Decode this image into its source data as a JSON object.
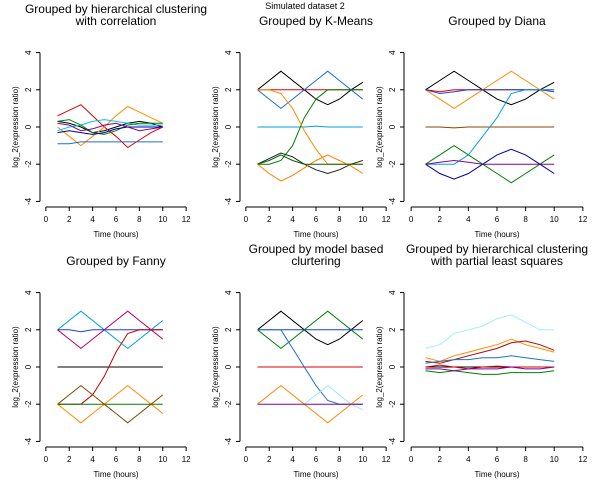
{
  "title": "Simulated dataset 2",
  "chart_data": [
    {
      "type": "line",
      "title": [
        "Grouped by hierarchical clustering",
        "with correlation"
      ],
      "xlabel": "Time (hours)",
      "ylabel": "log_2(expression ratio)",
      "x": [
        1,
        2,
        3,
        4,
        5,
        6,
        7,
        8,
        9,
        10
      ],
      "xlim": [
        -0.5,
        12.5
      ],
      "xticks": [
        0,
        2,
        4,
        6,
        8,
        10,
        12
      ],
      "ylim": [
        -4.3,
        4.3
      ],
      "yticks": [
        -4,
        -2,
        0,
        2,
        4
      ],
      "series": [
        {
          "color": "#000000",
          "values": [
            0.3,
            0.2,
            0,
            -0.3,
            -0.2,
            0,
            0.2,
            0.3,
            0.2,
            0
          ]
        },
        {
          "color": "#e00000",
          "values": [
            0.6,
            0.9,
            1.2,
            0.6,
            0,
            -0.5,
            -1.1,
            -0.7,
            -0.3,
            0
          ]
        },
        {
          "color": "#ff8c00",
          "values": [
            0,
            -0.5,
            -1,
            -0.5,
            0,
            0.6,
            1.1,
            0.8,
            0.5,
            0.2
          ]
        },
        {
          "color": "#1e6fd0",
          "values": [
            -0.9,
            -0.9,
            -0.8,
            -0.8,
            -0.8,
            -0.8,
            -0.8,
            -0.8,
            -0.8,
            -0.8
          ]
        },
        {
          "color": "#00c8e0",
          "values": [
            -0.2,
            0,
            0.1,
            0.3,
            0.4,
            0.3,
            0.2,
            0.1,
            0.1,
            0.1
          ]
        },
        {
          "color": "#008000",
          "values": [
            0.3,
            0.4,
            0.1,
            -0.3,
            -0.4,
            -0.2,
            0.1,
            0.2,
            0.2,
            0.2
          ]
        },
        {
          "color": "#0000a0",
          "values": [
            -0.3,
            -0.2,
            -0.3,
            -0.4,
            -0.3,
            -0.1,
            0,
            0,
            0,
            0
          ]
        },
        {
          "color": "#8000a0",
          "values": [
            0.2,
            0.1,
            -0.2,
            -0.1,
            0.1,
            0.2,
            0,
            -0.2,
            -0.1,
            0
          ]
        }
      ]
    },
    {
      "type": "line",
      "title": [
        "Grouped by K-Means"
      ],
      "xlabel": "Time (hours)",
      "ylabel": "log_2(expression ratio)",
      "x": [
        1,
        2,
        3,
        4,
        5,
        6,
        7,
        8,
        9,
        10
      ],
      "xlim": [
        -0.5,
        12.5
      ],
      "xticks": [
        0,
        2,
        4,
        6,
        8,
        10,
        12
      ],
      "ylim": [
        -4.3,
        4.3
      ],
      "yticks": [
        -4,
        -2,
        0,
        2,
        4
      ],
      "series": [
        {
          "color": "#e00000",
          "values": [
            2,
            2,
            2,
            2,
            2,
            2,
            2,
            2,
            2,
            2
          ]
        },
        {
          "color": "#000000",
          "values": [
            2,
            2.5,
            3,
            2.5,
            2,
            1.5,
            1.2,
            1.5,
            2,
            2.4
          ]
        },
        {
          "color": "#1e6fd0",
          "values": [
            2,
            1.5,
            1,
            1.5,
            2,
            2.5,
            3,
            2.5,
            2,
            1.5
          ]
        },
        {
          "color": "#00a0e0",
          "values": [
            0,
            0,
            0,
            0,
            0,
            0.05,
            0,
            0,
            0,
            0
          ]
        },
        {
          "color": "#008000",
          "values": [
            -2,
            -2,
            -1.8,
            -1,
            0.5,
            1.5,
            2,
            2,
            2,
            2
          ]
        },
        {
          "color": "#ff8c00",
          "values": [
            2,
            2,
            1.8,
            1,
            -0.2,
            -1.2,
            -2,
            -2,
            -2,
            -2
          ]
        },
        {
          "color": "#202020",
          "values": [
            -2,
            -1.7,
            -1.4,
            -1.6,
            -2,
            -2.3,
            -2.5,
            -2.3,
            -2,
            -1.8
          ]
        },
        {
          "color": "#ff7f00",
          "values": [
            -2,
            -2.5,
            -2.9,
            -2.6,
            -2.2,
            -1.8,
            -1.5,
            -1.8,
            -2.1,
            -2.5
          ]
        },
        {
          "color": "#006400",
          "values": [
            -2,
            -1.8,
            -1.5,
            -1.8,
            -2,
            -2,
            -2,
            -2,
            -2,
            -2
          ]
        }
      ]
    },
    {
      "type": "line",
      "title": [
        "Grouped by Diana"
      ],
      "xlabel": "Time (hours)",
      "ylabel": "log_2(expression ratio)",
      "x": [
        1,
        2,
        3,
        4,
        5,
        6,
        7,
        8,
        9,
        10
      ],
      "xlim": [
        -0.5,
        12.5
      ],
      "xticks": [
        0,
        2,
        4,
        6,
        8,
        10,
        12
      ],
      "ylim": [
        -4.3,
        4.3
      ],
      "yticks": [
        -4,
        -2,
        0,
        2,
        4
      ],
      "series": [
        {
          "color": "#000000",
          "values": [
            2,
            2.5,
            3,
            2.5,
            2,
            1.5,
            1.2,
            1.5,
            2,
            2.4
          ]
        },
        {
          "color": "#ff8c00",
          "values": [
            2,
            1.5,
            1,
            1.5,
            2,
            2.5,
            3,
            2.5,
            2,
            1.5
          ]
        },
        {
          "color": "#e00000",
          "values": [
            2,
            1.9,
            2,
            2,
            2,
            2,
            2,
            2,
            2,
            2
          ]
        },
        {
          "color": "#1e3fd0",
          "values": [
            2,
            1.8,
            1.9,
            2,
            2,
            2,
            2,
            2,
            2,
            1.9
          ]
        },
        {
          "color": "#8b4500",
          "values": [
            0,
            0,
            -0.05,
            0,
            0,
            0,
            0,
            0,
            0,
            0
          ]
        },
        {
          "color": "#00a0e0",
          "values": [
            -2,
            -2,
            -2,
            -1.5,
            -0.5,
            0.5,
            1.8,
            2,
            2,
            2
          ]
        },
        {
          "color": "#008000",
          "values": [
            -2,
            -1.5,
            -1,
            -1.5,
            -2,
            -2.5,
            -3,
            -2.5,
            -2,
            -1.5
          ]
        },
        {
          "color": "#0000a0",
          "values": [
            -2,
            -2.5,
            -2.8,
            -2.5,
            -2,
            -1.5,
            -1.2,
            -1.5,
            -2,
            -2.5
          ]
        },
        {
          "color": "#8000a0",
          "values": [
            -2,
            -1.9,
            -1.8,
            -1.9,
            -2,
            -2,
            -2,
            -2,
            -2,
            -2
          ]
        }
      ]
    },
    {
      "type": "line",
      "title": [
        "Grouped by Fanny"
      ],
      "xlabel": "Time (hours)",
      "ylabel": "log_2(expression ratio)",
      "x": [
        1,
        2,
        3,
        4,
        5,
        6,
        7,
        8,
        9,
        10
      ],
      "xlim": [
        -0.5,
        12.5
      ],
      "xticks": [
        0,
        2,
        4,
        6,
        8,
        10,
        12
      ],
      "ylim": [
        -4.3,
        4.3
      ],
      "yticks": [
        -4,
        -2,
        0,
        2,
        4
      ],
      "series": [
        {
          "color": "#00a0e0",
          "values": [
            2,
            2.5,
            3,
            2.5,
            2,
            1.5,
            1,
            1.5,
            2,
            2.5
          ]
        },
        {
          "color": "#c00060",
          "values": [
            2,
            1.5,
            1,
            1.5,
            2,
            2.5,
            3,
            2.5,
            2,
            1.5
          ]
        },
        {
          "color": "#1e3fd0",
          "values": [
            2,
            2,
            1.9,
            2,
            2,
            2,
            2,
            2,
            2,
            2
          ]
        },
        {
          "color": "#000000",
          "values": [
            0,
            0,
            0,
            0,
            0,
            0,
            0,
            0,
            0,
            0
          ]
        },
        {
          "color": "#c00000",
          "values": [
            -2,
            -2,
            -2,
            -1.5,
            -0.5,
            0.8,
            1.8,
            2,
            2,
            2
          ]
        },
        {
          "color": "#ff8c00",
          "values": [
            -2,
            -2.5,
            -3,
            -2.5,
            -2,
            -1.5,
            -1,
            -1.5,
            -2,
            -2.5
          ]
        },
        {
          "color": "#8b4500",
          "values": [
            -2,
            -1.5,
            -1,
            -1.5,
            -2,
            -2.5,
            -3,
            -2.5,
            -2,
            -1.5
          ]
        },
        {
          "color": "#008000",
          "values": [
            -2,
            -2,
            -2,
            -2,
            -2,
            -2,
            -2,
            -2,
            -2,
            -2
          ]
        }
      ]
    },
    {
      "type": "line",
      "title": [
        "Grouped by model based",
        "clurtering"
      ],
      "xlabel": "Time (hours)",
      "ylabel": "log_2(expression ratio)",
      "x": [
        1,
        2,
        3,
        4,
        5,
        6,
        7,
        8,
        9,
        10
      ],
      "xlim": [
        -0.5,
        12.5
      ],
      "xticks": [
        0,
        2,
        4,
        6,
        8,
        10,
        12
      ],
      "ylim": [
        -4.3,
        4.3
      ],
      "yticks": [
        -4,
        -2,
        0,
        2,
        4
      ],
      "series": [
        {
          "color": "#000000",
          "values": [
            2,
            2.5,
            3,
            2.5,
            2,
            1.5,
            1.2,
            1.5,
            2,
            2.5
          ]
        },
        {
          "color": "#008000",
          "values": [
            2,
            1.5,
            1,
            1.5,
            2,
            2.5,
            3,
            2.5,
            2,
            1.5
          ]
        },
        {
          "color": "#1e3fd0",
          "values": [
            2,
            2,
            2,
            2,
            2,
            2,
            2,
            2,
            2,
            2
          ]
        },
        {
          "color": "#e00000",
          "values": [
            0,
            0,
            0,
            0,
            0,
            0,
            0,
            0,
            0,
            0
          ]
        },
        {
          "color": "#1e6fd0",
          "values": [
            2,
            2,
            2,
            1,
            0,
            -1,
            -1.8,
            -2,
            -2,
            -2
          ]
        },
        {
          "color": "#a0e8f0",
          "values": [
            -2,
            -1.5,
            -1,
            -1.5,
            -2,
            -1.5,
            -1,
            -1.5,
            -2,
            -2.3
          ]
        },
        {
          "color": "#ff8c00",
          "values": [
            -2,
            -1.5,
            -1,
            -1.5,
            -2,
            -2.5,
            -3,
            -2.5,
            -2,
            -1.5
          ]
        },
        {
          "color": "#8000a0",
          "values": [
            -2,
            -2,
            -2,
            -2,
            -2,
            -2,
            -2,
            -2,
            -2,
            -2
          ]
        }
      ]
    },
    {
      "type": "line",
      "title": [
        "Grouped by hierarchical clustering",
        "with partial least squares"
      ],
      "xlabel": "Time (hours)",
      "ylabel": "log_2(expression ratio)",
      "x": [
        1,
        2,
        3,
        4,
        5,
        6,
        7,
        8,
        9,
        10
      ],
      "xlim": [
        -0.5,
        12.5
      ],
      "xticks": [
        0,
        2,
        4,
        6,
        8,
        10,
        12
      ],
      "ylim": [
        -4.3,
        4.3
      ],
      "yticks": [
        -4,
        -2,
        0,
        2,
        4
      ],
      "series": [
        {
          "color": "#a0f0f8",
          "values": [
            1,
            1.2,
            1.8,
            2,
            2.2,
            2.6,
            2.8,
            2.4,
            2,
            2
          ]
        },
        {
          "color": "#ff8c00",
          "values": [
            0.5,
            0.3,
            0.6,
            0.8,
            1,
            1.2,
            1.5,
            1.2,
            1,
            0.8
          ]
        },
        {
          "color": "#c00000",
          "values": [
            0.3,
            0.2,
            0.4,
            0.6,
            0.8,
            1,
            1.3,
            1.4,
            1.2,
            0.9
          ]
        },
        {
          "color": "#1e6fd0",
          "values": [
            0.2,
            0.3,
            0.4,
            0.4,
            0.5,
            0.5,
            0.6,
            0.5,
            0.4,
            0.3
          ]
        },
        {
          "color": "#000000",
          "values": [
            0,
            0,
            0,
            0,
            0,
            0,
            0,
            0,
            0,
            0
          ]
        },
        {
          "color": "#e00000",
          "values": [
            0,
            0.1,
            0,
            -0.1,
            0,
            0.05,
            0,
            0,
            0,
            0
          ]
        },
        {
          "color": "#008000",
          "values": [
            -0.2,
            -0.3,
            -0.2,
            -0.3,
            -0.4,
            -0.4,
            -0.3,
            -0.3,
            -0.3,
            -0.2
          ]
        },
        {
          "color": "#8000a0",
          "values": [
            -0.1,
            -0.1,
            -0.2,
            -0.1,
            -0.1,
            -0.1,
            0,
            -0.1,
            -0.1,
            0
          ]
        }
      ]
    }
  ]
}
